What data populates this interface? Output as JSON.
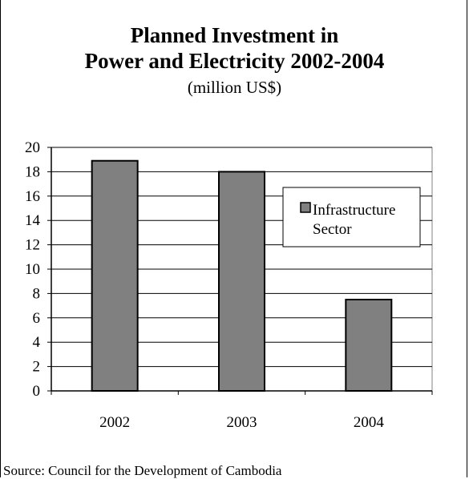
{
  "chart_data": {
    "type": "bar",
    "title_line1": "Planned Investment in",
    "title_line2": "Power and Electricity 2002-2004",
    "subtitle": "(million US$)",
    "categories": [
      "2002",
      "2003",
      "2004"
    ],
    "series": [
      {
        "name": "Infrastructure Sector",
        "values": [
          18.9,
          18.0,
          7.5
        ]
      }
    ],
    "legend_lines": [
      "Infrastructure",
      "Sector"
    ],
    "ylim": [
      0,
      20
    ],
    "yticks": [
      0,
      2,
      4,
      6,
      8,
      10,
      12,
      14,
      16,
      18,
      20
    ],
    "grid": true,
    "legend_position": "right",
    "bar_color": "#808080",
    "xlabel": "",
    "ylabel": ""
  },
  "source": "Source: Council for the Development of Cambodia"
}
